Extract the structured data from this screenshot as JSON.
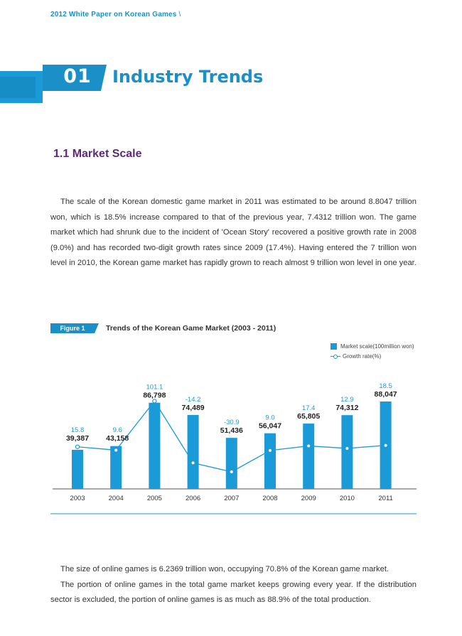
{
  "running_header": "2012 White Paper on Korean Games",
  "chapter": {
    "number": "01",
    "title": "Industry Trends"
  },
  "section": {
    "title": "1.1 Market Scale"
  },
  "intro_paragraph": "The scale of the Korean domestic game market in 2011 was estimated to be around 8.8047 trillion won, which is 18.5% increase compared to that of the previous year, 7.4312 trillion won. The game market which had shrunk due to the incident of 'Ocean Story' recovered a positive growth rate in 2008 (9.0%) and has recorded two-digit growth rates since 2009 (17.4%). Having entered the 7 trillion won level in 2010, the Korean game market has rapidly grown to reach almost 9 trillion won level in one year.",
  "figure": {
    "badge": "Figure 1",
    "title": "Trends of the Korean Game Market (2003 - 2011)"
  },
  "chart_data": {
    "type": "bar",
    "title": "Trends of the Korean Game Market (2003 - 2011)",
    "categories": [
      "2003",
      "2004",
      "2005",
      "2006",
      "2007",
      "2008",
      "2009",
      "2010",
      "2011"
    ],
    "series": [
      {
        "name": "Market scale(100million won)",
        "type": "bar",
        "values": [
          39387,
          43158,
          86798,
          74489,
          51436,
          56047,
          65805,
          74312,
          88047
        ],
        "labels": [
          "39,387",
          "43,158",
          "86,798",
          "74,489",
          "51,436",
          "56,047",
          "65,805",
          "74,312",
          "88,047"
        ]
      },
      {
        "name": "Growth rate(%)",
        "type": "line",
        "values": [
          15.8,
          9.6,
          101.1,
          -14.2,
          -30.9,
          9.0,
          17.4,
          12.9,
          18.5
        ],
        "labels": [
          "15.8",
          "9.6",
          "101.1",
          "-14.2",
          "-30.9",
          "9.0",
          "17.4",
          "12.9",
          "18.5"
        ]
      }
    ],
    "colors": {
      "bar": "#1a9bd7",
      "line": "#1a9bd7",
      "bar_label": "#222222",
      "rate_label": "#1a9bd7"
    },
    "legend_position": "top-right",
    "grid": false
  },
  "outro_paragraphs": [
    "The size of online games is 6.2369 trillion won, occupying 70.8% of the Korean game market.",
    "The portion of online games in the total game market keeps growing every year. If the distribution sector is excluded, the portion of online games is as much as 88.9% of the total production."
  ]
}
